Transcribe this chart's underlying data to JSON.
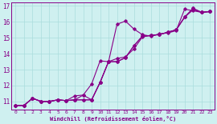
{
  "xlabel": "Windchill (Refroidissement éolien,°C)",
  "bg_color": "#cff0f0",
  "line_color": "#880088",
  "grid_color": "#aadddd",
  "xlim": [
    -0.5,
    23.5
  ],
  "ylim": [
    10.5,
    17.2
  ],
  "xticks": [
    0,
    1,
    2,
    3,
    4,
    5,
    6,
    7,
    8,
    9,
    10,
    11,
    12,
    13,
    14,
    15,
    16,
    17,
    18,
    19,
    20,
    21,
    22,
    23
  ],
  "yticks": [
    11,
    12,
    13,
    14,
    15,
    16,
    17
  ],
  "line1_x": [
    0,
    1,
    2,
    3,
    4,
    5,
    6,
    7,
    8,
    9,
    10,
    11,
    12,
    13,
    14,
    15,
    16,
    17,
    18,
    19,
    20,
    21,
    22,
    23
  ],
  "line1_y": [
    10.75,
    10.75,
    11.2,
    11.0,
    11.0,
    11.1,
    11.05,
    11.1,
    11.4,
    11.1,
    12.2,
    13.5,
    13.7,
    13.8,
    14.3,
    15.05,
    15.15,
    15.2,
    15.35,
    15.5,
    16.3,
    16.75,
    16.6,
    16.65
  ],
  "line2_x": [
    0,
    1,
    2,
    3,
    4,
    5,
    6,
    7,
    8,
    9,
    10,
    11,
    12,
    13,
    14,
    15,
    16,
    17,
    18,
    19,
    20,
    21,
    22,
    23
  ],
  "line2_y": [
    10.75,
    10.75,
    11.2,
    11.0,
    11.0,
    11.1,
    11.05,
    11.1,
    11.1,
    11.1,
    12.2,
    13.5,
    15.85,
    16.05,
    15.55,
    15.2,
    15.1,
    15.25,
    15.3,
    15.45,
    16.8,
    16.7,
    16.6,
    16.65
  ],
  "line3_x": [
    0,
    1,
    2,
    3,
    4,
    5,
    6,
    7,
    8,
    9,
    10,
    11,
    12,
    13,
    14,
    15,
    16,
    17,
    18,
    19,
    20,
    21,
    22,
    23
  ],
  "line3_y": [
    10.75,
    10.75,
    11.2,
    11.0,
    11.0,
    11.1,
    11.05,
    11.35,
    11.4,
    12.1,
    13.55,
    13.5,
    13.5,
    13.75,
    14.5,
    15.1,
    15.15,
    15.2,
    15.35,
    15.5,
    16.3,
    16.85,
    16.6,
    16.65
  ],
  "line4_x": [
    0,
    1,
    2,
    3,
    4,
    5,
    6,
    7,
    8,
    9,
    10,
    11,
    12,
    13,
    14,
    15,
    16,
    17,
    18,
    19,
    20,
    21,
    22,
    23
  ],
  "line4_y": [
    10.75,
    10.75,
    11.2,
    11.0,
    11.0,
    11.1,
    11.05,
    11.1,
    11.1,
    11.1,
    12.2,
    13.5,
    13.5,
    13.75,
    14.5,
    15.1,
    15.15,
    15.2,
    15.35,
    15.5,
    16.3,
    16.85,
    16.6,
    16.65
  ]
}
